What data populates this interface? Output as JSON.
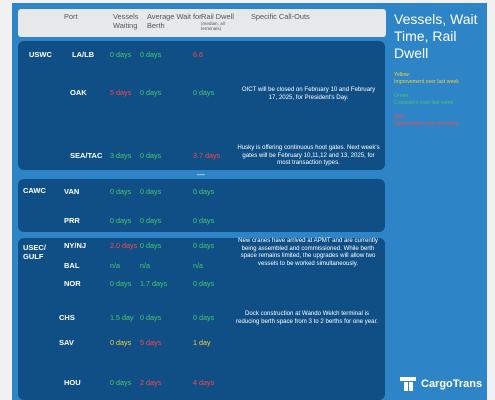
{
  "header": {
    "port": "Port",
    "vessels": "Vessels Waiting",
    "avg_wait": "Average Wait for Berth",
    "rail": "Rail Dwell",
    "rail_sub": "(median, all terminals)",
    "callouts": "Specific Call-Outs"
  },
  "regions": {
    "uswc": "USWC",
    "cawc": "CAWC",
    "usec": "USEC/ GULF"
  },
  "rows": [
    {
      "port": "LA/LB",
      "vessels": "0 days",
      "avg": "0 days",
      "rail": "6.6",
      "vc": "green",
      "ac": "green",
      "rc": "red",
      "note": ""
    },
    {
      "port": "OAK",
      "vessels": "5 days",
      "avg": "0 days",
      "rail": "0 days",
      "vc": "red",
      "ac": "green",
      "rc": "green",
      "note": "OICT will be closed on February 10 and February 17, 2025, for President's Day."
    },
    {
      "port": "SEA/TAC",
      "vessels": "3 days",
      "avg": "0 days",
      "rail": "3.7 days",
      "vc": "green",
      "ac": "green",
      "rc": "red",
      "note": "Husky is offering continuous hoot gates. Next week's gates will be February 10,11,12 and 13, 2025, for most transaction types."
    },
    {
      "port": "VAN",
      "vessels": "0 days",
      "avg": "0 days",
      "rail": "0 days",
      "vc": "green",
      "ac": "green",
      "rc": "green",
      "note": ""
    },
    {
      "port": "PRR",
      "vessels": "0 days",
      "avg": "0 days",
      "rail": "0 days",
      "vc": "green",
      "ac": "green",
      "rc": "green",
      "note": ""
    },
    {
      "port": "NY/NJ",
      "vessels": "2.0 days",
      "avg": "0 days",
      "rail": "0 days",
      "vc": "red",
      "ac": "green",
      "rc": "green",
      "note": "New cranes have arrived at APMT and are currently being assembled and commissioned. While berth space remains limited, the upgrades will allow two vessels to be worked simultaneously."
    },
    {
      "port": "BAL",
      "vessels": "n/a",
      "avg": "n/a",
      "rail": "n/a",
      "vc": "green",
      "ac": "green",
      "rc": "green",
      "note": ""
    },
    {
      "port": "NOR",
      "vessels": "0 days",
      "avg": "1.7 days",
      "rail": "0 days",
      "vc": "green",
      "ac": "green",
      "rc": "green",
      "note": ""
    },
    {
      "port": "CHS",
      "vessels": "1.5 day",
      "avg": "0 days",
      "rail": "0 days",
      "vc": "green",
      "ac": "green",
      "rc": "green",
      "note": "Dock construction at Wando Welch terminal is reducing berth space from 3 to 2 berths for one year."
    },
    {
      "port": "SAV",
      "vessels": "0 days",
      "avg": "5 days",
      "rail": "1 day",
      "vc": "yellow",
      "ac": "red",
      "rc": "yellow",
      "note": ""
    },
    {
      "port": "HOU",
      "vessels": "0 days",
      "avg": "2 days",
      "rail": "4 days",
      "vc": "green",
      "ac": "red",
      "rc": "red",
      "note": ""
    }
  ],
  "sidebar": {
    "title": "Vessels, Wait Time, Rail Dwell",
    "legend": [
      {
        "label": "Yellow:",
        "desc": "Improvement over last week",
        "color": "#f2d13a"
      },
      {
        "label": "Green:",
        "desc": "Consistent over last week",
        "color": "#47c96b"
      },
      {
        "label": "Red:",
        "desc": "Deterioration over last week",
        "color": "#ff4646"
      }
    ]
  },
  "logo": {
    "text": "CargoTrans",
    "icon": "cargotrans-logo-icon"
  },
  "colors": {
    "background": "#2d84c7",
    "panel": "#0f4f86",
    "header": "#e7e8ea"
  }
}
